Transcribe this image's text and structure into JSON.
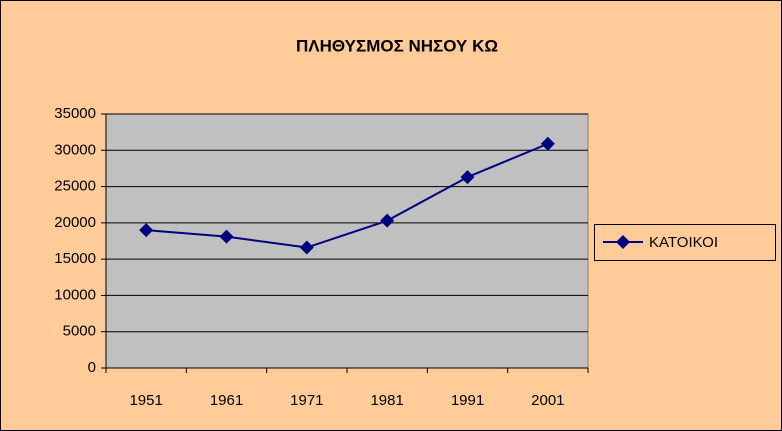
{
  "chart_data": {
    "type": "line",
    "title": "ΠΛΗΘΥΣΜΟΣ ΝΗΣΟΥ ΚΩ",
    "categories": [
      "1951",
      "1961",
      "1971",
      "1981",
      "1991",
      "2001"
    ],
    "series": [
      {
        "name": "ΚΑΤΟΙΚΟΙ",
        "color": "#000080",
        "values": [
          19000,
          18100,
          16600,
          20300,
          26300,
          30900
        ]
      }
    ],
    "ylim": [
      0,
      35000
    ],
    "yticks": [
      0,
      5000,
      10000,
      15000,
      20000,
      25000,
      30000,
      35000
    ],
    "grid": true,
    "legend": "right"
  }
}
